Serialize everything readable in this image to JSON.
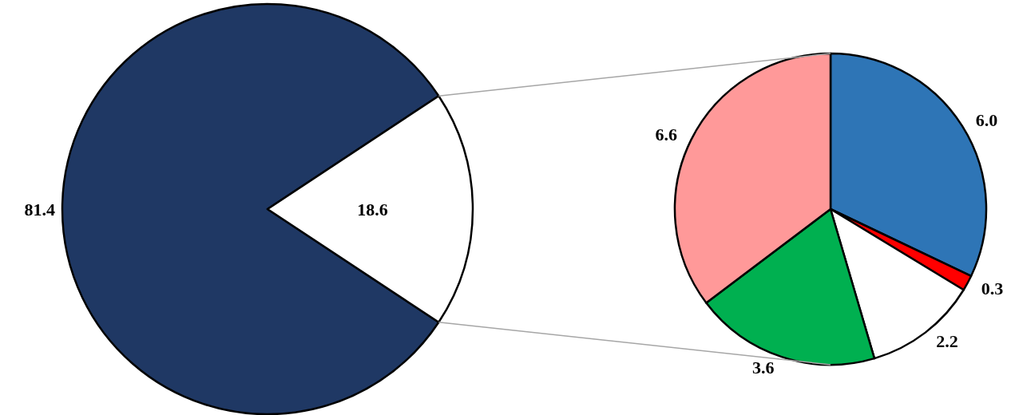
{
  "chart_data": [
    {
      "type": "pie",
      "categories": [
        null,
        null
      ],
      "values": [
        81.4,
        18.6
      ],
      "colors": [
        "#1f3864",
        "#ffffff"
      ],
      "value_labels": [
        "81.4",
        "18.6"
      ]
    },
    {
      "type": "pie",
      "categories": [
        null,
        null,
        null,
        null,
        null
      ],
      "values": [
        6.0,
        0.3,
        2.2,
        3.6,
        6.6
      ],
      "colors": [
        "#2e75b6",
        "#ff0000",
        "#ffffff",
        "#00b050",
        "#ff9999"
      ],
      "value_labels": [
        "6.0",
        "0.3",
        "2.2",
        "3.6",
        "6.6"
      ]
    }
  ]
}
